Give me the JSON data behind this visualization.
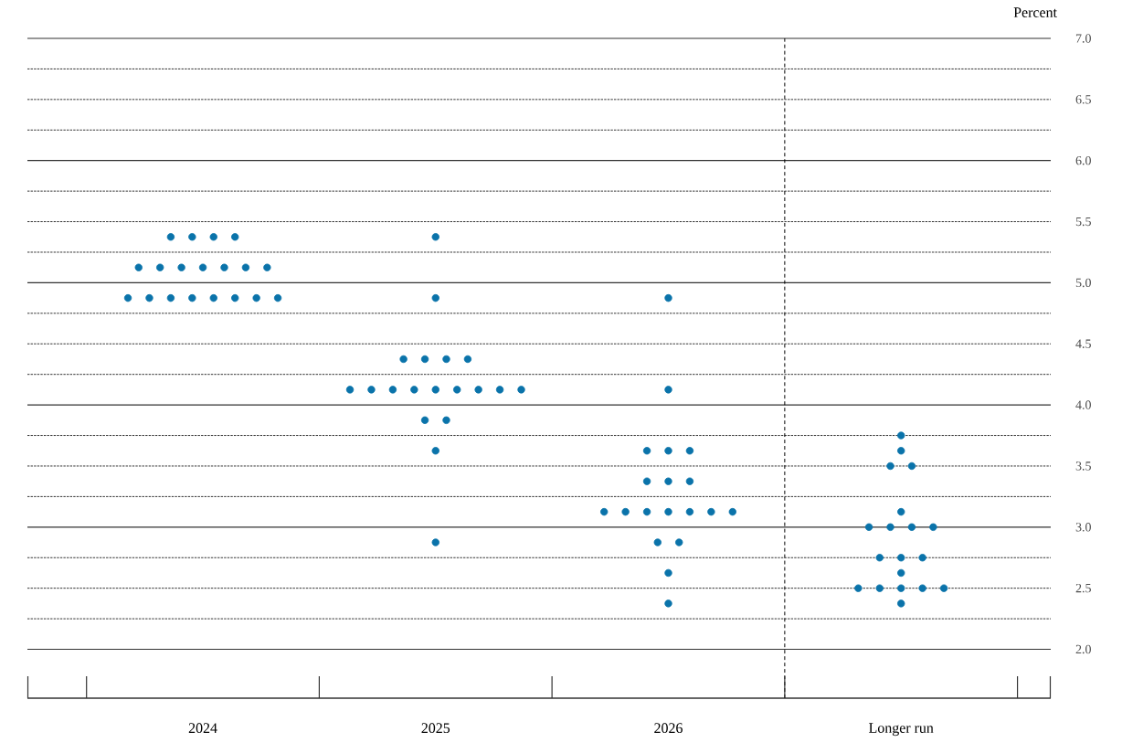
{
  "chart_data": {
    "type": "scatter",
    "ylabel": "Percent",
    "categories": [
      "2024",
      "2025",
      "2026",
      "Longer run"
    ],
    "series": [
      {
        "color": "#0a73aa",
        "values": [
          5.375,
          5.375,
          4.875,
          3.75
        ]
      },
      {
        "color": "#0a73aa",
        "values": [
          5.375,
          4.875,
          4.125,
          3.625
        ]
      },
      {
        "color": "#0a73aa",
        "values": [
          5.375,
          4.375,
          3.625,
          3.5
        ]
      },
      {
        "color": "#0a73aa",
        "values": [
          5.375,
          4.375,
          3.625,
          3.5
        ]
      },
      {
        "color": "#0a73aa",
        "values": [
          5.125,
          4.375,
          3.625,
          3.125
        ]
      },
      {
        "color": "#0a73aa",
        "values": [
          5.125,
          4.375,
          3.375,
          3.0
        ]
      },
      {
        "color": "#0a73aa",
        "values": [
          5.125,
          4.125,
          3.375,
          3.0
        ]
      },
      {
        "color": "#0a73aa",
        "values": [
          5.125,
          4.125,
          3.375,
          3.0
        ]
      },
      {
        "color": "#0a73aa",
        "values": [
          5.125,
          4.125,
          3.125,
          3.0
        ]
      },
      {
        "color": "#0a73aa",
        "values": [
          5.125,
          4.125,
          3.125,
          2.75
        ]
      },
      {
        "color": "#0a73aa",
        "values": [
          5.125,
          4.125,
          3.125,
          2.75
        ]
      },
      {
        "color": "#0a73aa",
        "values": [
          4.875,
          4.125,
          3.125,
          2.75
        ]
      },
      {
        "color": "#0a73aa",
        "values": [
          4.875,
          4.125,
          3.125,
          2.625
        ]
      },
      {
        "color": "#0a73aa",
        "values": [
          4.875,
          4.125,
          3.125,
          2.5
        ]
      },
      {
        "color": "#0a73aa",
        "values": [
          4.875,
          4.125,
          3.125,
          2.5
        ]
      },
      {
        "color": "#0a73aa",
        "values": [
          4.875,
          3.875,
          2.875,
          2.5
        ]
      },
      {
        "color": "#0a73aa",
        "values": [
          4.875,
          3.875,
          2.875,
          2.5
        ]
      },
      {
        "color": "#0a73aa",
        "values": [
          4.875,
          3.625,
          2.625,
          2.5
        ]
      },
      {
        "color": "#0a73aa",
        "values": [
          4.875,
          2.875,
          2.375,
          2.375
        ]
      }
    ],
    "ylim": [
      1.6,
      7.0
    ],
    "yticks": [
      {
        "value": 2.0,
        "label": "2.0"
      },
      {
        "value": 2.25,
        "label": null
      },
      {
        "value": 2.5,
        "label": "2.5"
      },
      {
        "value": 2.75,
        "label": null
      },
      {
        "value": 3.0,
        "label": "3.0"
      },
      {
        "value": 3.25,
        "label": null
      },
      {
        "value": 3.5,
        "label": "3.5"
      },
      {
        "value": 3.75,
        "label": null
      },
      {
        "value": 4.0,
        "label": "4.0"
      },
      {
        "value": 4.25,
        "label": null
      },
      {
        "value": 4.5,
        "label": "4.5"
      },
      {
        "value": 4.75,
        "label": null
      },
      {
        "value": 5.0,
        "label": "5.0"
      },
      {
        "value": 5.25,
        "label": null
      },
      {
        "value": 5.5,
        "label": "5.5"
      },
      {
        "value": 5.75,
        "label": null
      },
      {
        "value": 6.0,
        "label": "6.0"
      },
      {
        "value": 6.25,
        "label": null
      },
      {
        "value": 6.5,
        "label": "6.5"
      },
      {
        "value": 6.75,
        "label": null
      },
      {
        "value": 7.0,
        "label": "7.0"
      }
    ],
    "grid": "y",
    "legend": false,
    "marker": "circle"
  }
}
